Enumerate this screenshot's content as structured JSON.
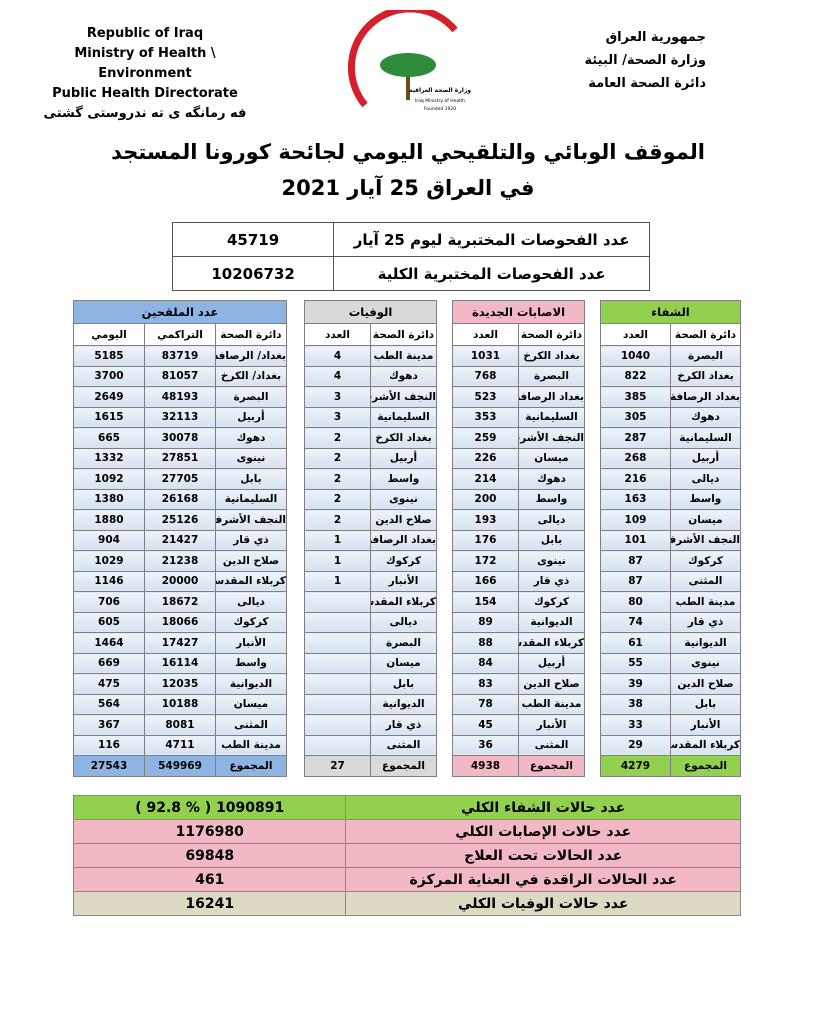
{
  "header": {
    "left": [
      "Republic of Iraq",
      "Ministry of Health \\ Environment",
      "Public Health Directorate",
      "فه رمانگه ی ته ندروستی گشتی"
    ],
    "right": [
      "جمهورية العراق",
      "وزارة الصحة/ البيئة",
      "دائرة الصحة العامة"
    ],
    "logo": [
      "وزارة الصحة العراقية",
      "Iraq Ministry of Health",
      "Founded 1920"
    ]
  },
  "title": [
    "الموقف الوبائي والتلقيحي اليومي لجائحة كورونا المستجد",
    "في العراق 25 آيار 2021"
  ],
  "tests": [
    [
      "عدد الفحوصات المختبرية ليوم 25 آيار",
      45719
    ],
    [
      "عدد الفحوصات المختبرية الكلية",
      10206732
    ]
  ],
  "tables": [
    {
      "title": "الشفاء",
      "columns": [
        "دائرة الصحة",
        "العدد"
      ],
      "rows": [
        [
          "البصرة",
          1040
        ],
        [
          "بغداد الكرخ",
          822
        ],
        [
          "بغداد الرصافة",
          385
        ],
        [
          "دهوك",
          305
        ],
        [
          "السليمانية",
          287
        ],
        [
          "أربيل",
          268
        ],
        [
          "ديالى",
          216
        ],
        [
          "واسط",
          163
        ],
        [
          "ميسان",
          109
        ],
        [
          "النجف الأشرف",
          101
        ],
        [
          "كركوك",
          87
        ],
        [
          "المثنى",
          87
        ],
        [
          "مدينة الطب",
          80
        ],
        [
          "ذي قار",
          74
        ],
        [
          "الديوانية",
          61
        ],
        [
          "نينوى",
          55
        ],
        [
          "صلاح الدين",
          39
        ],
        [
          "بابل",
          38
        ],
        [
          "الأنبار",
          33
        ],
        [
          "كربلاء المقدسة",
          29
        ],
        [
          "المجموع",
          4279
        ]
      ]
    },
    {
      "title": "الاصابات الجديدة",
      "columns": [
        "دائرة الصحة",
        "العدد"
      ],
      "rows": [
        [
          "بغداد الكرخ",
          1031
        ],
        [
          "البصرة",
          768
        ],
        [
          "بغداد الرصافة",
          523
        ],
        [
          "السليمانية",
          353
        ],
        [
          "النجف الأشرف",
          259
        ],
        [
          "ميسان",
          226
        ],
        [
          "دهوك",
          214
        ],
        [
          "واسط",
          200
        ],
        [
          "ديالى",
          193
        ],
        [
          "بابل",
          176
        ],
        [
          "نينوى",
          172
        ],
        [
          "ذي قار",
          166
        ],
        [
          "كركوك",
          154
        ],
        [
          "الديوانية",
          89
        ],
        [
          "كربلاء المقدسة",
          88
        ],
        [
          "أربيل",
          84
        ],
        [
          "صلاح الدين",
          83
        ],
        [
          "مدينة الطب",
          78
        ],
        [
          "الأنبار",
          45
        ],
        [
          "المثنى",
          36
        ],
        [
          "المجموع",
          4938
        ]
      ]
    },
    {
      "title": "الوفيات",
      "columns": [
        "دائرة الصحة",
        "العدد"
      ],
      "rows": [
        [
          "مدينة الطب",
          4
        ],
        [
          "دهوك",
          4
        ],
        [
          "النجف الأشرف",
          3
        ],
        [
          "السليمانية",
          3
        ],
        [
          "بغداد الكرخ",
          2
        ],
        [
          "أربيل",
          2
        ],
        [
          "واسط",
          2
        ],
        [
          "نينوى",
          2
        ],
        [
          "صلاح الدين",
          2
        ],
        [
          "بغداد الرصافة",
          1
        ],
        [
          "كركوك",
          1
        ],
        [
          "الأنبار",
          1
        ],
        [
          "كربلاء المقدسة"
        ],
        [
          "ديالى"
        ],
        [
          "البصرة"
        ],
        [
          "ميسان"
        ],
        [
          "بابل"
        ],
        [
          "الديوانية"
        ],
        [
          "ذي قار"
        ],
        [
          "المثنى"
        ],
        [
          "المجموع",
          27
        ]
      ]
    },
    {
      "title": "عدد الملقحين",
      "columns": [
        "دائرة الصحة",
        "التراكمي",
        "اليومي"
      ],
      "rows": [
        [
          "بغداد/ الرصافة",
          83719,
          5185
        ],
        [
          "بغداد/ الكرخ",
          81057,
          3700
        ],
        [
          "البصرة",
          48193,
          2649
        ],
        [
          "أربيل",
          32113,
          1615
        ],
        [
          "دهوك",
          30078,
          665
        ],
        [
          "نينوى",
          27851,
          1332
        ],
        [
          "بابل",
          27705,
          1092
        ],
        [
          "السليمانية",
          26168,
          1380
        ],
        [
          "النجف الأشرف",
          25126,
          1880
        ],
        [
          "ذي قار",
          21427,
          904
        ],
        [
          "صلاح الدين",
          21238,
          1029
        ],
        [
          "كربلاء المقدسة",
          20000,
          1146
        ],
        [
          "ديالى",
          18672,
          706
        ],
        [
          "كركوك",
          18066,
          605
        ],
        [
          "الأنبار",
          17427,
          1464
        ],
        [
          "واسط",
          16114,
          669
        ],
        [
          "الديوانية",
          12035,
          475
        ],
        [
          "ميسان",
          10188,
          564
        ],
        [
          "المثنى",
          8081,
          367
        ],
        [
          "مدينة الطب",
          4711,
          116
        ],
        [
          "المجموع",
          549969,
          27543
        ]
      ]
    }
  ],
  "summary": [
    [
      "عدد حالات الشفاء الكلي",
      "( 92.8 % )  1090891"
    ],
    [
      "عدد حالات الإصابات الكلي",
      1176980
    ],
    [
      "عدد الحالات تحت العلاج",
      69848
    ],
    [
      "عدد الحالات الراقدة في العناية المركزة",
      461
    ],
    [
      "عدد حالات الوفيات الكلي",
      16241
    ]
  ]
}
